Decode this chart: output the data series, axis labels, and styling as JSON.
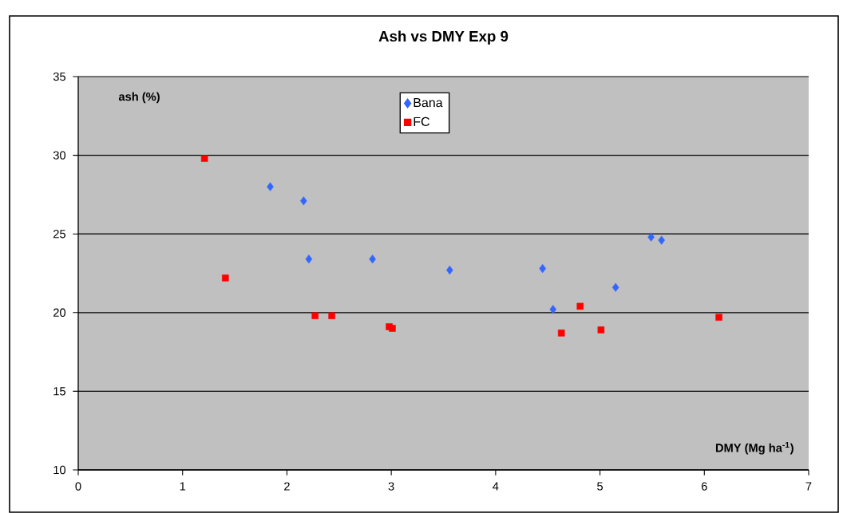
{
  "chart_data": {
    "type": "scatter",
    "title": "Ash vs DMY Exp 9",
    "xlabel": "DMY (Mg ha$^{-1}$)",
    "ylabel": "ash (%)",
    "xlim": [
      0,
      7
    ],
    "ylim": [
      10,
      35
    ],
    "xticks": [
      0,
      1,
      2,
      3,
      4,
      5,
      6,
      7
    ],
    "yticks": [
      10,
      15,
      20,
      25,
      30,
      35
    ],
    "grid": "y",
    "legend": "top",
    "series": [
      {
        "name": "Bana",
        "color": "#3366ff",
        "marker": "diamond",
        "x": [
          1.84,
          2.16,
          2.21,
          2.82,
          3.56,
          4.45,
          4.55,
          5.15,
          5.49,
          5.59
        ],
        "values": [
          28.0,
          27.1,
          23.4,
          23.4,
          22.7,
          22.8,
          20.2,
          21.6,
          24.8,
          24.6
        ]
      },
      {
        "name": "FC",
        "color": "#ff0000",
        "marker": "square",
        "x": [
          1.21,
          1.41,
          2.27,
          2.43,
          2.98,
          3.01,
          4.63,
          4.81,
          5.01,
          6.14
        ],
        "values": [
          29.8,
          22.2,
          19.8,
          19.8,
          19.1,
          19.0,
          18.7,
          20.4,
          18.9,
          19.7
        ]
      }
    ]
  }
}
